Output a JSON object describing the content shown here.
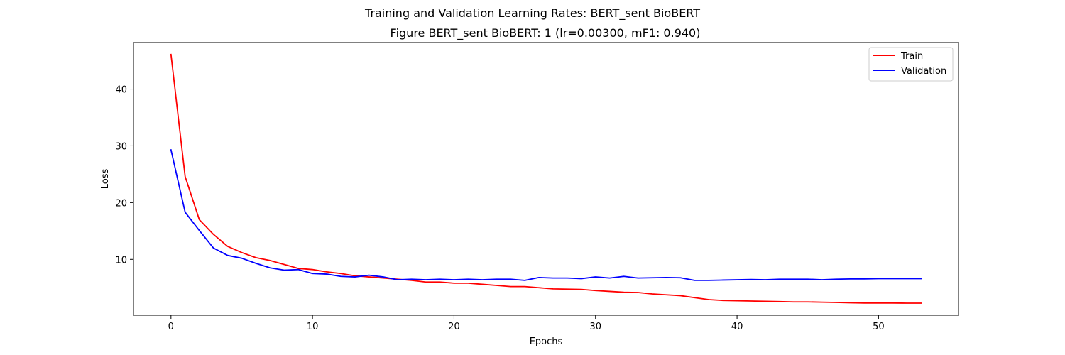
{
  "figure": {
    "suptitle": "Training and Validation Learning Rates: BERT_sent BioBERT",
    "title": "Figure BERT_sent BioBERT: 1 (lr=0.00300, mF1: 0.940)"
  },
  "chart_data": {
    "type": "line",
    "title": "Figure BERT_sent BioBERT: 1 (lr=0.00300, mF1: 0.940)",
    "xlabel": "Epochs",
    "ylabel": "Loss",
    "xlim": [
      -2.65,
      55.65
    ],
    "ylim": [
      0.15,
      48.2
    ],
    "xticks": [
      0,
      10,
      20,
      30,
      40,
      50
    ],
    "yticks": [
      10,
      20,
      30,
      40
    ],
    "grid": false,
    "legend_position": "top-right",
    "x": [
      0,
      1,
      2,
      3,
      4,
      5,
      6,
      7,
      8,
      9,
      10,
      11,
      12,
      13,
      14,
      15,
      16,
      17,
      18,
      19,
      20,
      21,
      22,
      23,
      24,
      25,
      26,
      27,
      28,
      29,
      30,
      31,
      32,
      33,
      34,
      35,
      36,
      37,
      38,
      39,
      40,
      41,
      42,
      43,
      44,
      45,
      46,
      47,
      48,
      49,
      50,
      51,
      52,
      53
    ],
    "series": [
      {
        "name": "Train",
        "color": "#ff0000",
        "values": [
          46.1,
          24.6,
          17.0,
          14.4,
          12.3,
          11.2,
          10.3,
          9.8,
          9.1,
          8.4,
          8.2,
          7.8,
          7.5,
          7.1,
          6.9,
          6.7,
          6.5,
          6.3,
          6.0,
          6.0,
          5.8,
          5.8,
          5.6,
          5.4,
          5.2,
          5.2,
          5.0,
          4.8,
          4.75,
          4.7,
          4.5,
          4.35,
          4.2,
          4.15,
          3.9,
          3.75,
          3.6,
          3.25,
          2.9,
          2.75,
          2.7,
          2.65,
          2.6,
          2.55,
          2.5,
          2.5,
          2.45,
          2.4,
          2.35,
          2.3,
          2.3,
          2.3,
          2.28,
          2.28
        ]
      },
      {
        "name": "Validation",
        "color": "#0000ff",
        "values": [
          29.3,
          18.3,
          15.1,
          12.0,
          10.7,
          10.2,
          9.3,
          8.5,
          8.1,
          8.2,
          7.5,
          7.4,
          7.0,
          6.9,
          7.2,
          6.9,
          6.4,
          6.5,
          6.4,
          6.5,
          6.4,
          6.5,
          6.4,
          6.5,
          6.5,
          6.3,
          6.8,
          6.7,
          6.7,
          6.6,
          6.9,
          6.7,
          7.0,
          6.7,
          6.75,
          6.8,
          6.75,
          6.3,
          6.3,
          6.35,
          6.4,
          6.45,
          6.4,
          6.5,
          6.5,
          6.5,
          6.4,
          6.5,
          6.55,
          6.55,
          6.6,
          6.6,
          6.6,
          6.6
        ]
      }
    ]
  }
}
